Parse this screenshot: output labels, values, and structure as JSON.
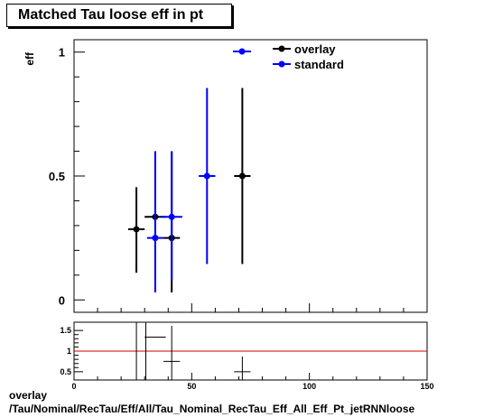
{
  "title": "Matched Tau loose eff in pt",
  "footer": {
    "line1": "overlay",
    "line2": "/Tau/Nominal/RecTau/Eff/All/Tau_Nominal_RecTau_Eff_All_Eff_Pt_jetRNNloose"
  },
  "colors": {
    "overlay": "#000000",
    "standard": "#0000ff",
    "ratio_line": "#cc0000"
  },
  "chart_data": [
    {
      "type": "scatter",
      "ylabel": "eff",
      "xlim": [
        0,
        150
      ],
      "ylim": [
        -0.05,
        1.05
      ],
      "y_ticks": [
        0,
        0.5,
        1
      ],
      "y_tick_labels": [
        "0",
        "0.5",
        "1"
      ],
      "legend": {
        "placement": "top-right",
        "entries": [
          "overlay",
          "standard"
        ]
      },
      "series": [
        {
          "name": "overlay",
          "color": "#000000",
          "points": [
            {
              "x": 26.5,
              "xerr": 3.5,
              "y": 0.285,
              "ylow": 0.11,
              "yhigh": 0.455
            },
            {
              "x": 34.5,
              "xerr": 4.5,
              "y": 0.335,
              "ylow": 0.08,
              "yhigh": 0.6
            },
            {
              "x": 41.5,
              "xerr": 3.5,
              "y": 0.25,
              "ylow": 0.03,
              "yhigh": 0.6
            },
            {
              "x": 71.5,
              "xerr": 3.5,
              "y": 0.5,
              "ylow": 0.145,
              "yhigh": 0.855
            }
          ]
        },
        {
          "name": "standard",
          "color": "#0000ff",
          "points": [
            {
              "x": 34.5,
              "xerr": 3.5,
              "y": 0.25,
              "ylow": 0.03,
              "yhigh": 0.6
            },
            {
              "x": 41.5,
              "xerr": 4.5,
              "y": 0.335,
              "ylow": 0.08,
              "yhigh": 0.6
            },
            {
              "x": 56.5,
              "xerr": 3.5,
              "y": 0.5,
              "ylow": 0.145,
              "yhigh": 0.855
            }
          ]
        }
      ]
    },
    {
      "type": "scatter",
      "xlim": [
        0,
        150
      ],
      "ylim": [
        0.3,
        1.7
      ],
      "x_ticks": [
        0,
        50,
        100,
        150
      ],
      "x_tick_labels": [
        "0",
        "50",
        "100",
        "150"
      ],
      "y_ticks": [
        0.5,
        1,
        1.5
      ],
      "y_tick_labels": [
        "0.5",
        "1",
        "1.5"
      ],
      "reference_line": 1,
      "series": [
        {
          "name": "ratio",
          "color": "#000000",
          "points": [
            {
              "x": 26.5,
              "xerr": 3.5,
              "y": null
            },
            {
              "x": 34.5,
              "xerr": 4.5,
              "y": 1.34
            },
            {
              "x": 41.5,
              "xerr": 3.5,
              "y": 0.75
            },
            {
              "x": 71.5,
              "xerr": 3.5,
              "y": 0.5
            }
          ]
        }
      ]
    }
  ]
}
